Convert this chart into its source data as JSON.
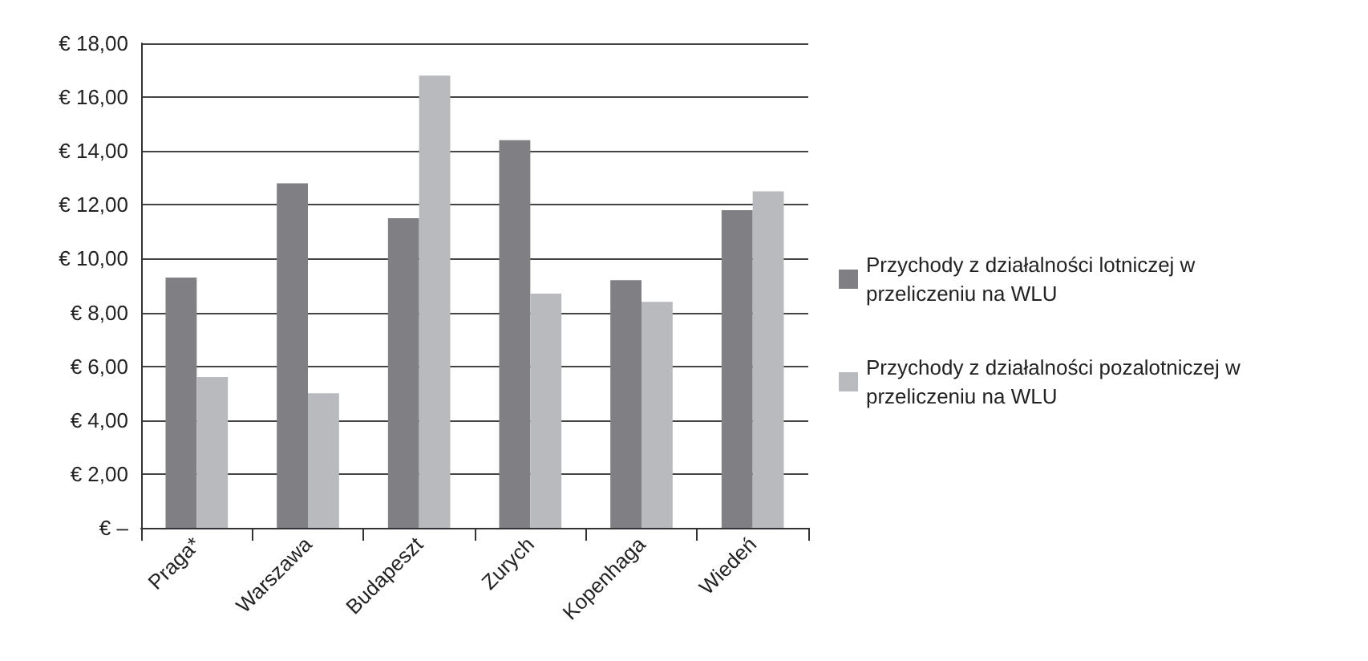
{
  "chart_data": {
    "type": "bar",
    "categories": [
      "Praga*",
      "Warszawa",
      "Budapeszt",
      "Zurych",
      "Kopenhaga",
      "Wiedeń"
    ],
    "series": [
      {
        "name": "Przychody z działalności lotniczej w przeliczeniu na WLU",
        "color": "#808084",
        "values": [
          9.3,
          12.8,
          11.5,
          14.4,
          9.2,
          11.8
        ]
      },
      {
        "name": "Przychody z działalności pozalotniczej w przeliczeniu na WLU",
        "color": "#b9babe",
        "values": [
          5.6,
          5.0,
          16.8,
          8.7,
          8.4,
          12.5
        ]
      }
    ],
    "ylim": [
      0,
      18
    ],
    "yticks": [
      {
        "value": 0,
        "label": "€ –"
      },
      {
        "value": 2,
        "label": "€ 2,00"
      },
      {
        "value": 4,
        "label": "€ 4,00"
      },
      {
        "value": 6,
        "label": "€ 6,00"
      },
      {
        "value": 8,
        "label": "€ 8,00"
      },
      {
        "value": 10,
        "label": "€ 10,00"
      },
      {
        "value": 12,
        "label": "€ 12,00"
      },
      {
        "value": 14,
        "label": "€ 14,00"
      },
      {
        "value": 16,
        "label": "€ 16,00"
      },
      {
        "value": 18,
        "label": "€ 18,00"
      }
    ],
    "grid": "y",
    "legend": "right"
  }
}
